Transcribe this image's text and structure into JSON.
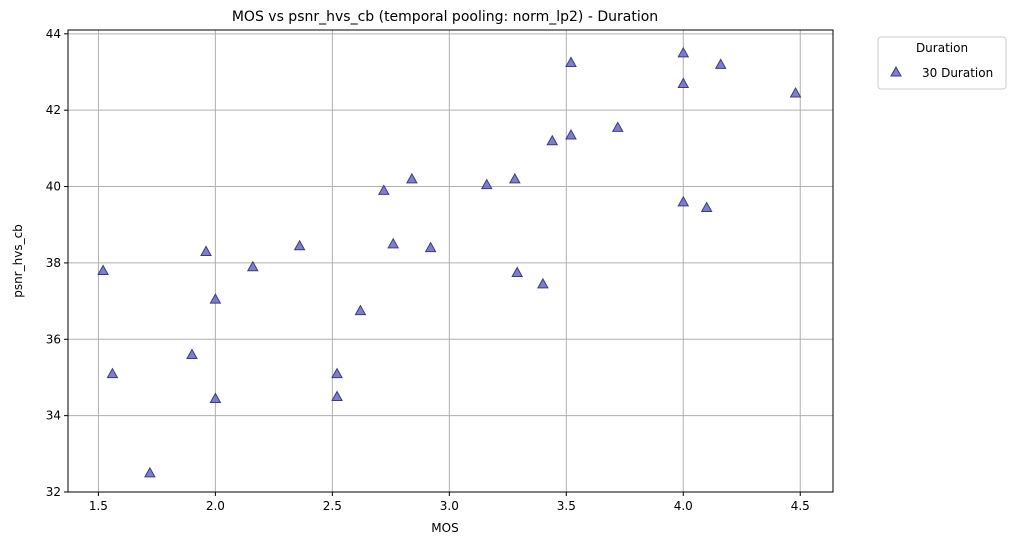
{
  "chart_data": {
    "type": "scatter",
    "title": "MOS vs psnr_hvs_cb (temporal pooling: norm_lp2) - Duration",
    "xlabel": "MOS",
    "ylabel": "psnr_hvs_cb",
    "xlim": [
      1.37,
      4.64
    ],
    "ylim": [
      32,
      44.1
    ],
    "xticks": [
      "1.5",
      "2.0",
      "2.5",
      "3.0",
      "3.5",
      "4.0",
      "4.5"
    ],
    "yticks": [
      "32",
      "34",
      "36",
      "38",
      "40",
      "42",
      "44"
    ],
    "grid": true,
    "legend": {
      "title": "Duration",
      "placement": "outside-top-right"
    },
    "series": [
      {
        "name": "30 Duration",
        "marker": "triangle",
        "color": "#6a66bf",
        "edge_color": "#3b3a8a",
        "points": [
          [
            1.52,
            37.8
          ],
          [
            1.56,
            35.1
          ],
          [
            1.72,
            32.5
          ],
          [
            1.9,
            35.6
          ],
          [
            1.96,
            38.3
          ],
          [
            2.0,
            37.05
          ],
          [
            2.0,
            34.45
          ],
          [
            2.16,
            37.9
          ],
          [
            2.36,
            38.45
          ],
          [
            2.52,
            35.1
          ],
          [
            2.52,
            34.5
          ],
          [
            2.62,
            36.75
          ],
          [
            2.72,
            39.9
          ],
          [
            2.76,
            38.5
          ],
          [
            2.84,
            40.2
          ],
          [
            2.92,
            38.4
          ],
          [
            3.16,
            40.05
          ],
          [
            3.28,
            40.2
          ],
          [
            3.29,
            37.75
          ],
          [
            3.4,
            37.45
          ],
          [
            3.44,
            41.2
          ],
          [
            3.52,
            41.35
          ],
          [
            3.52,
            43.25
          ],
          [
            3.72,
            41.55
          ],
          [
            4.0,
            43.5
          ],
          [
            4.0,
            42.7
          ],
          [
            4.0,
            39.6
          ],
          [
            4.1,
            39.45
          ],
          [
            4.16,
            43.2
          ],
          [
            4.48,
            42.45
          ]
        ]
      }
    ]
  }
}
